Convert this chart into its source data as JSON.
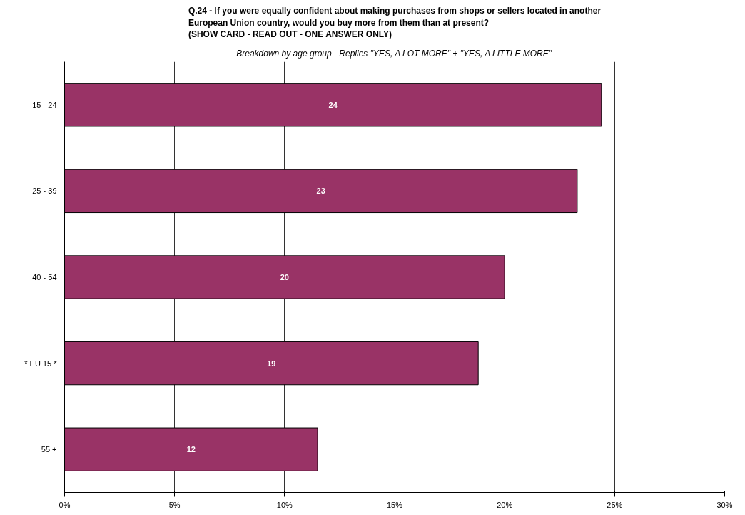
{
  "chart_data": {
    "type": "bar",
    "orientation": "horizontal",
    "title": "Q.24 - If you were equally confident about making purchases from shops or sellers located in another\nEuropean Union country, would you buy more from them than at present?\n(SHOW CARD - READ OUT - ONE ANSWER ONLY)",
    "subtitle": "Breakdown by age group - Replies \"YES, A LOT MORE\" + \"YES, A LITTLE MORE\"",
    "categories": [
      "15 - 24",
      "25 - 39",
      "40 - 54",
      "* EU 15 *",
      "55 +"
    ],
    "values": [
      24.4,
      23.3,
      20.0,
      18.8,
      11.5
    ],
    "value_labels": [
      "24",
      "23",
      "20",
      "19",
      "12"
    ],
    "color": "#993366",
    "xlim": [
      0,
      30
    ],
    "xticks": [
      {
        "value": 0,
        "label": "0%"
      },
      {
        "value": 5,
        "label": "5%"
      },
      {
        "value": 10,
        "label": "10%"
      },
      {
        "value": 15,
        "label": "15%"
      },
      {
        "value": 20,
        "label": "20%"
      },
      {
        "value": 25,
        "label": "25%"
      },
      {
        "value": 30,
        "label": "30%"
      }
    ],
    "grid": "x"
  }
}
